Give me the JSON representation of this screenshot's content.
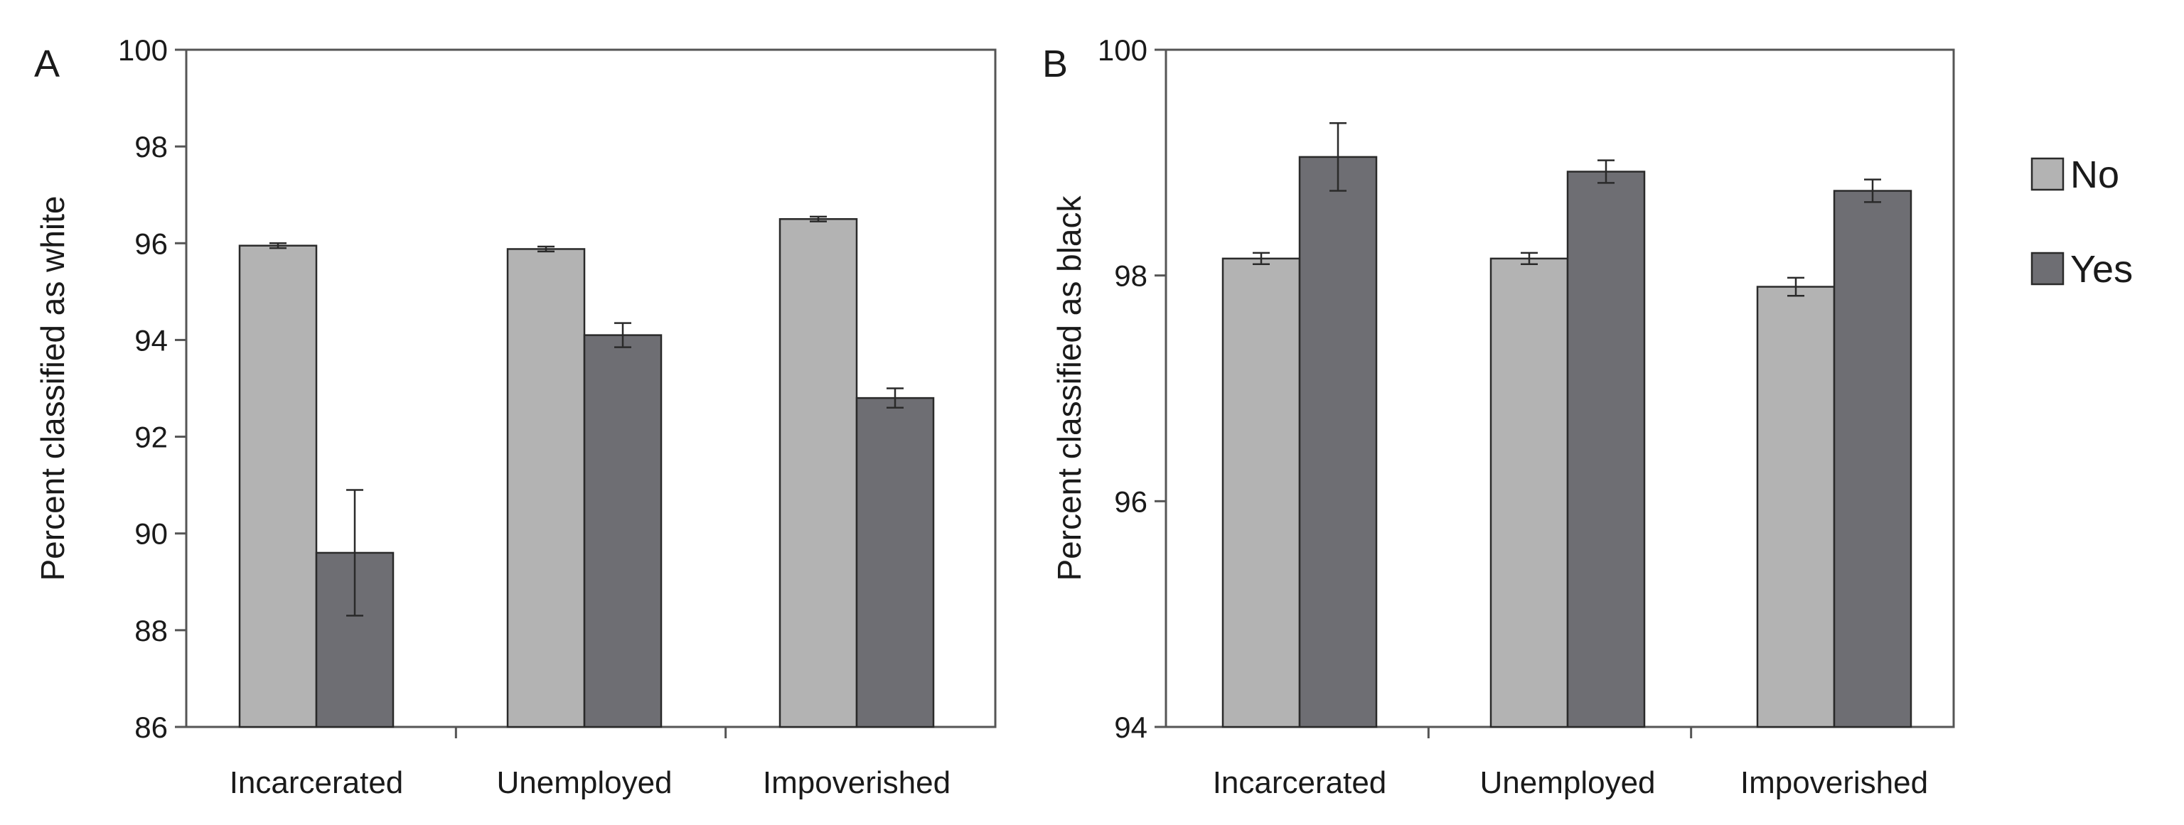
{
  "chart_data": [
    {
      "type": "bar",
      "panel": "A",
      "ylabel": "Percent classified as white",
      "xlabel": "",
      "ylim": [
        86,
        100
      ],
      "yticks": [
        86,
        88,
        90,
        92,
        94,
        96,
        98,
        100
      ],
      "grid": false,
      "categories": [
        "Incarcerated",
        "Unemployed",
        "Impoverished"
      ],
      "series": [
        {
          "name": "No",
          "color": "#b3b3b3",
          "values": [
            95.95,
            95.88,
            96.5
          ],
          "errors": [
            0.05,
            0.05,
            0.05
          ]
        },
        {
          "name": "Yes",
          "color": "#6e6e73",
          "values": [
            89.6,
            94.1,
            92.8
          ],
          "errors": [
            1.3,
            0.25,
            0.2
          ]
        }
      ]
    },
    {
      "type": "bar",
      "panel": "B",
      "ylabel": "Percent classified as black",
      "xlabel": "",
      "ylim": [
        94,
        100
      ],
      "yticks": [
        94,
        96,
        98,
        100
      ],
      "grid": false,
      "legend_position": "right",
      "categories": [
        "Incarcerated",
        "Unemployed",
        "Impoverished"
      ],
      "series": [
        {
          "name": "No",
          "color": "#b3b3b3",
          "values": [
            98.15,
            98.15,
            97.9
          ],
          "errors": [
            0.05,
            0.05,
            0.08
          ]
        },
        {
          "name": "Yes",
          "color": "#6e6e73",
          "values": [
            99.05,
            98.92,
            98.75
          ],
          "errors": [
            0.3,
            0.1,
            0.1
          ]
        }
      ]
    }
  ],
  "legend": {
    "items": [
      {
        "label": "No",
        "color": "#b3b3b3"
      },
      {
        "label": "Yes",
        "color": "#6e6e73"
      }
    ]
  }
}
